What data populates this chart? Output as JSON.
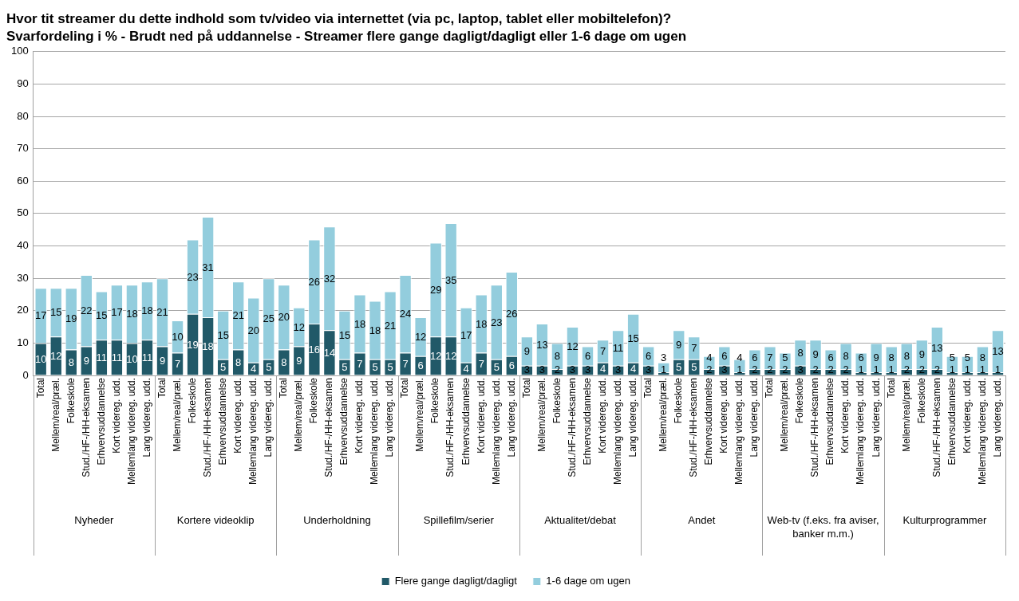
{
  "chart_data": {
    "type": "bar",
    "title": "Hvor tit streamer du dette indhold som tv/video via internettet (via pc, laptop, tablet eller mobiltelefon)?",
    "subtitle": "Svarfordeling i % - Brudt ned på uddannelse - Streamer flere gange dagligt/dagligt eller 1-6 dage om ugen",
    "categories": [
      "Total",
      "Mellem/real/præl.",
      "Folkeskole",
      "Stud./HF-/HH-eksamen",
      "Erhvervsuddannelse",
      "Kort videreg. udd.",
      "Mellemlang videreg. udd.",
      "Lang videreg. udd.",
      "Total",
      "Mellem/real/præl.",
      "Folkeskole",
      "Stud./HF-/HH-eksamen",
      "Erhvervsuddannelse",
      "Kort videreg. udd.",
      "Mellemlang videreg. udd.",
      "Lang videreg. udd.",
      "Total",
      "Mellem/real/præl.",
      "Folkeskole",
      "Stud./HF-/HH-eksamen",
      "Erhvervsuddannelse",
      "Kort videreg. udd.",
      "Mellemlang videreg. udd.",
      "Lang videreg. udd.",
      "Total",
      "Mellem/real/præl.",
      "Folkeskole",
      "Stud./HF-/HH-eksamen",
      "Erhvervsuddannelse",
      "Kort videreg. udd.",
      "Mellemlang videreg. udd.",
      "Lang videreg. udd.",
      "Total",
      "Mellem/real/præl.",
      "Folkeskole",
      "Stud./HF-/HH-eksamen",
      "Erhvervsuddannelse",
      "Kort videreg. udd.",
      "Mellemlang videreg. udd.",
      "Lang videreg. udd.",
      "Total",
      "Mellem/real/præl.",
      "Folkeskole",
      "Stud./HF-/HH-eksamen",
      "Erhvervsuddannelse",
      "Kort videreg. udd.",
      "Mellemlang videreg. udd.",
      "Lang videreg. udd.",
      "Total",
      "Mellem/real/præl.",
      "Folkeskole",
      "Stud./HF-/HH-eksamen",
      "Erhvervsuddannelse",
      "Kort videreg. udd.",
      "Mellemlang videreg. udd.",
      "Lang videreg. udd.",
      "Total",
      "Mellem/real/præl.",
      "Folkeskole",
      "Stud./HF-/HH-eksamen",
      "Erhvervsuddannelse",
      "Kort videreg. udd.",
      "Mellemlang videreg. udd.",
      "Lang videreg. udd."
    ],
    "annotations": [
      "Nyheder",
      "Kortere videoklip",
      "Underholdning",
      "Spillefilm/serier",
      "Aktualitet/debat",
      "Andet",
      "Web-tv (f.eks. fra aviser, banker m.m.)",
      "Kulturprogrammer"
    ],
    "series": [
      {
        "name": "Flere gange dagligt/dagligt",
        "color": "#215968",
        "values": [
          10,
          12,
          8,
          9,
          11,
          11,
          10,
          11,
          9,
          7,
          19,
          18,
          5,
          8,
          4,
          5,
          8,
          9,
          16,
          14,
          5,
          7,
          5,
          5,
          7,
          6,
          12,
          12,
          4,
          7,
          5,
          6,
          3,
          3,
          2,
          3,
          3,
          4,
          3,
          4,
          3,
          1,
          5,
          5,
          2,
          3,
          1,
          2,
          2,
          2,
          3,
          2,
          2,
          2,
          1,
          1,
          1,
          2,
          2,
          2,
          1,
          1,
          1,
          1
        ]
      },
      {
        "name": "1-6 dage om ugen",
        "color": "#93cddd",
        "values": [
          17,
          15,
          19,
          22,
          15,
          17,
          18,
          18,
          21,
          10,
          23,
          31,
          15,
          21,
          20,
          25,
          20,
          12,
          26,
          32,
          15,
          18,
          18,
          21,
          24,
          12,
          29,
          35,
          17,
          18,
          23,
          26,
          9,
          13,
          8,
          12,
          6,
          7,
          11,
          15,
          6,
          3,
          9,
          7,
          4,
          6,
          4,
          6,
          7,
          5,
          8,
          9,
          6,
          8,
          6,
          9,
          8,
          8,
          9,
          13,
          5,
          5,
          8,
          13
        ]
      }
    ],
    "stacked": true,
    "ylim": [
      0,
      100
    ],
    "yticks": [
      0,
      10,
      20,
      30,
      40,
      50,
      60,
      70,
      80,
      90,
      100
    ],
    "grid": "y",
    "legend": "bottom",
    "data_labels": true
  }
}
